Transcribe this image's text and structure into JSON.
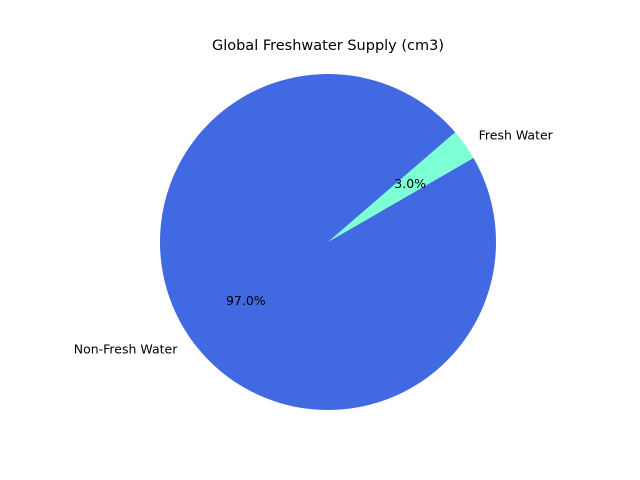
{
  "chart_data": {
    "type": "pie",
    "title": "Global Freshwater Supply (cm3)",
    "labels": [
      "Fresh Water",
      "Non-Fresh Water"
    ],
    "values": [
      3.0,
      97.0
    ],
    "percent_labels": [
      "3.0%",
      "97.0%"
    ],
    "colors": [
      "#7fffd4",
      "#4169e1"
    ],
    "start_angle_deg": 30,
    "legend": false
  }
}
